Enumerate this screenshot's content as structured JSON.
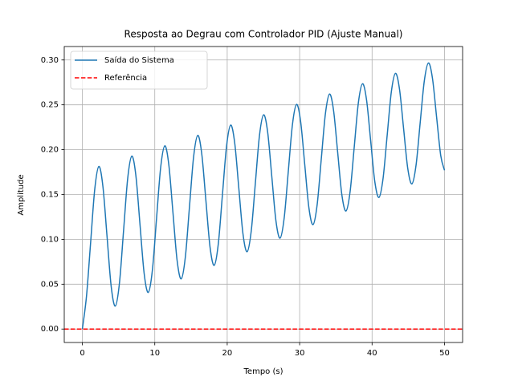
{
  "chart_data": {
    "type": "line",
    "title": "Resposta ao Degrau com Controlador PID (Ajuste Manual)",
    "x_label": "Tempo (s)",
    "y_label": "Amplitude",
    "x": [
      0,
      0.57,
      1.14,
      1.71,
      2.28,
      2.84,
      3.41,
      3.98,
      4.55,
      5.12,
      5.69,
      6.26,
      6.83,
      7.39,
      7.96,
      8.53,
      9.1,
      9.67,
      10.24,
      10.81,
      11.38,
      11.94,
      12.51,
      13.08,
      13.65,
      14.22,
      14.79,
      15.36,
      15.93,
      16.49,
      17.06,
      17.63,
      18.2,
      18.77,
      19.34,
      19.91,
      20.48,
      21.04,
      21.61,
      22.18,
      22.75,
      23.32,
      23.89,
      24.46,
      25.03,
      25.59,
      26.16,
      26.73,
      27.3,
      27.87,
      28.44,
      29.01,
      29.58,
      30.14,
      30.71,
      31.28,
      31.85,
      32.42,
      32.99,
      33.56,
      34.13,
      34.69,
      35.26,
      35.83,
      36.4,
      36.97,
      37.54,
      38.11,
      38.68,
      39.24,
      39.81,
      40.38,
      40.95,
      41.52,
      42.09,
      42.66,
      43.23,
      43.79,
      44.36,
      44.93,
      45.5,
      46.07,
      46.64,
      47.21,
      47.78,
      48.34,
      48.91,
      49.48,
      50
    ],
    "series": [
      {
        "name": "Saída do Sistema",
        "color": "#1f77b4",
        "values": [
          0,
          0.0365,
          0.0963,
          0.1558,
          0.1813,
          0.1588,
          0.103,
          0.0475,
          0.0256,
          0.0511,
          0.1097,
          0.1679,
          0.1928,
          0.171,
          0.1163,
          0.0621,
          0.0408,
          0.0657,
          0.123,
          0.18,
          0.2043,
          0.183,
          0.1297,
          0.0766,
          0.0559,
          0.0803,
          0.1363,
          0.192,
          0.2159,
          0.195,
          0.143,
          0.0913,
          0.071,
          0.0949,
          0.1497,
          0.204,
          0.2274,
          0.2072,
          0.1563,
          0.1059,
          0.0862,
          0.1095,
          0.163,
          0.2162,
          0.2389,
          0.2192,
          0.1697,
          0.1205,
          0.1013,
          0.1241,
          0.1763,
          0.2282,
          0.2505,
          0.2312,
          0.183,
          0.1351,
          0.1164,
          0.1387,
          0.1897,
          0.2402,
          0.262,
          0.2433,
          0.1963,
          0.1497,
          0.1316,
          0.1533,
          0.203,
          0.2524,
          0.2735,
          0.2554,
          0.2097,
          0.1643,
          0.1467,
          0.168,
          0.2163,
          0.2644,
          0.2851,
          0.2674,
          0.223,
          0.179,
          0.1618,
          0.1825,
          0.2297,
          0.2764,
          0.2966,
          0.2795,
          0.2363,
          0.1935,
          0.177
        ]
      }
    ],
    "reference": {
      "name": "Referência",
      "color": "#ff0000",
      "value": 0
    },
    "xlim": [
      -2.5,
      52.5
    ],
    "xticks": [
      0,
      10,
      20,
      30,
      40,
      50
    ],
    "ylim": [
      -0.015,
      0.315
    ],
    "yticks": [
      {
        "value": 0,
        "label": "0.00"
      },
      {
        "value": 0.05,
        "label": "0.05"
      },
      {
        "value": 0.1,
        "label": "0.10"
      },
      {
        "value": 0.15,
        "label": "0.15"
      },
      {
        "value": 0.2,
        "label": "0.20"
      },
      {
        "value": 0.25,
        "label": "0.25"
      },
      {
        "value": 0.3,
        "label": "0.30"
      }
    ],
    "grid": true,
    "legend": "upper left"
  }
}
